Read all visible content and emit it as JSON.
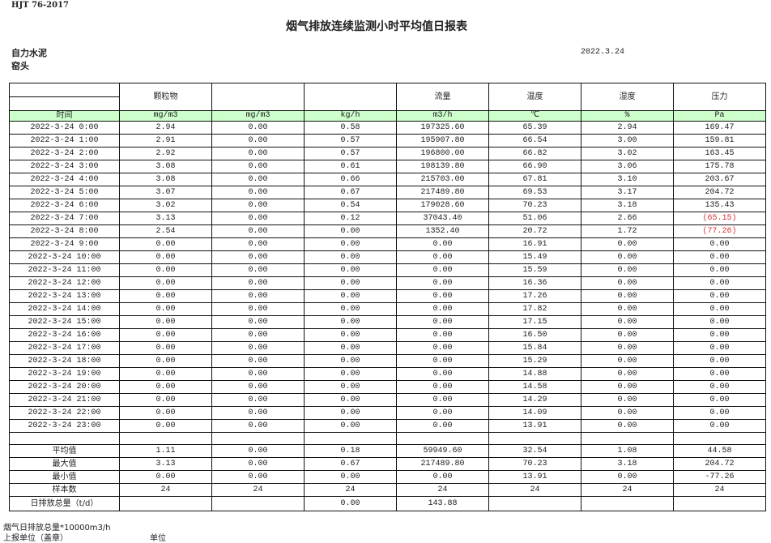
{
  "standard": "HJT  76-2017",
  "title": "烟气排放连续监测小时平均值日报表",
  "company": "自力水泥",
  "point": "窑头",
  "date": "2022.3.24",
  "columns": [
    {
      "name": "",
      "unit": "时间"
    },
    {
      "name": "颗粒物",
      "unit": "mg/m3"
    },
    {
      "name": "",
      "unit": "mg/m3"
    },
    {
      "name": "",
      "unit": "kg/h"
    },
    {
      "name": "流量",
      "unit": "m3/h"
    },
    {
      "name": "温度",
      "unit": "℃"
    },
    {
      "name": "湿度",
      "unit": "%"
    },
    {
      "name": "压力",
      "unit": "Pa"
    }
  ],
  "rows": [
    [
      "2022-3-24 0:00",
      "2.94",
      "0.00",
      "0.58",
      "197325.60",
      "65.39",
      "2.94",
      "169.47"
    ],
    [
      "2022-3-24 1:00",
      "2.91",
      "0.00",
      "0.57",
      "195907.80",
      "66.54",
      "3.00",
      "159.81"
    ],
    [
      "2022-3-24 2:00",
      "2.92",
      "0.00",
      "0.57",
      "196800.00",
      "66.82",
      "3.02",
      "163.45"
    ],
    [
      "2022-3-24 3:00",
      "3.08",
      "0.00",
      "0.61",
      "198139.80",
      "66.90",
      "3.06",
      "175.78"
    ],
    [
      "2022-3-24 4:00",
      "3.08",
      "0.00",
      "0.66",
      "215703.00",
      "67.81",
      "3.10",
      "203.67"
    ],
    [
      "2022-3-24 5:00",
      "3.07",
      "0.00",
      "0.67",
      "217489.80",
      "69.53",
      "3.17",
      "204.72"
    ],
    [
      "2022-3-24 6:00",
      "3.02",
      "0.00",
      "0.54",
      "179028.60",
      "70.23",
      "3.18",
      "135.43"
    ],
    [
      "2022-3-24 7:00",
      "3.13",
      "0.00",
      "0.12",
      "37043.40",
      "51.06",
      "2.66",
      "(65.15)"
    ],
    [
      "2022-3-24 8:00",
      "2.54",
      "0.00",
      "0.00",
      "1352.40",
      "20.72",
      "1.72",
      "(77.26)"
    ],
    [
      "2022-3-24 9:00",
      "0.00",
      "0.00",
      "0.00",
      "0.00",
      "16.91",
      "0.00",
      "0.00"
    ],
    [
      "2022-3-24 10:00",
      "0.00",
      "0.00",
      "0.00",
      "0.00",
      "15.49",
      "0.00",
      "0.00"
    ],
    [
      "2022-3-24 11:00",
      "0.00",
      "0.00",
      "0.00",
      "0.00",
      "15.59",
      "0.00",
      "0.00"
    ],
    [
      "2022-3-24 12:00",
      "0.00",
      "0.00",
      "0.00",
      "0.00",
      "16.36",
      "0.00",
      "0.00"
    ],
    [
      "2022-3-24 13:00",
      "0.00",
      "0.00",
      "0.00",
      "0.00",
      "17.26",
      "0.00",
      "0.00"
    ],
    [
      "2022-3-24 14:00",
      "0.00",
      "0.00",
      "0.00",
      "0.00",
      "17.82",
      "0.00",
      "0.00"
    ],
    [
      "2022-3-24 15:00",
      "0.00",
      "0.00",
      "0.00",
      "0.00",
      "17.15",
      "0.00",
      "0.00"
    ],
    [
      "2022-3-24 16:00",
      "0.00",
      "0.00",
      "0.00",
      "0.00",
      "16.50",
      "0.00",
      "0.00"
    ],
    [
      "2022-3-24 17:00",
      "0.00",
      "0.00",
      "0.00",
      "0.00",
      "15.84",
      "0.00",
      "0.00"
    ],
    [
      "2022-3-24 18:00",
      "0.00",
      "0.00",
      "0.00",
      "0.00",
      "15.29",
      "0.00",
      "0.00"
    ],
    [
      "2022-3-24 19:00",
      "0.00",
      "0.00",
      "0.00",
      "0.00",
      "14.88",
      "0.00",
      "0.00"
    ],
    [
      "2022-3-24 20:00",
      "0.00",
      "0.00",
      "0.00",
      "0.00",
      "14.58",
      "0.00",
      "0.00"
    ],
    [
      "2022-3-24 21:00",
      "0.00",
      "0.00",
      "0.00",
      "0.00",
      "14.29",
      "0.00",
      "0.00"
    ],
    [
      "2022-3-24 22:00",
      "0.00",
      "0.00",
      "0.00",
      "0.00",
      "14.09",
      "0.00",
      "0.00"
    ],
    [
      "2022-3-24 23:00",
      "0.00",
      "0.00",
      "0.00",
      "0.00",
      "13.91",
      "0.00",
      "0.00"
    ]
  ],
  "summary": [
    [
      "平均值",
      "1.11",
      "0.00",
      "0.18",
      "59949.60",
      "32.54",
      "1.08",
      "44.58"
    ],
    [
      "最大值",
      "3.13",
      "0.00",
      "0.67",
      "217489.80",
      "70.23",
      "3.18",
      "204.72"
    ],
    [
      "最小值",
      "0.00",
      "0.00",
      "0.00",
      "0.00",
      "13.91",
      "0.00",
      "-77.26"
    ],
    [
      "样本数",
      "24",
      "24",
      "24",
      "24",
      "24",
      "24",
      "24"
    ],
    [
      "日排放总量（t/d）",
      "",
      "",
      "0.00",
      "143.88",
      "",
      "",
      ""
    ]
  ],
  "negative_color": "#e03030",
  "unit_row_color": "#ccffcc",
  "footer": {
    "note": "烟气日排放总量*10000m3/h",
    "reporter": "上报单位（盖章）",
    "unit": "单位"
  }
}
